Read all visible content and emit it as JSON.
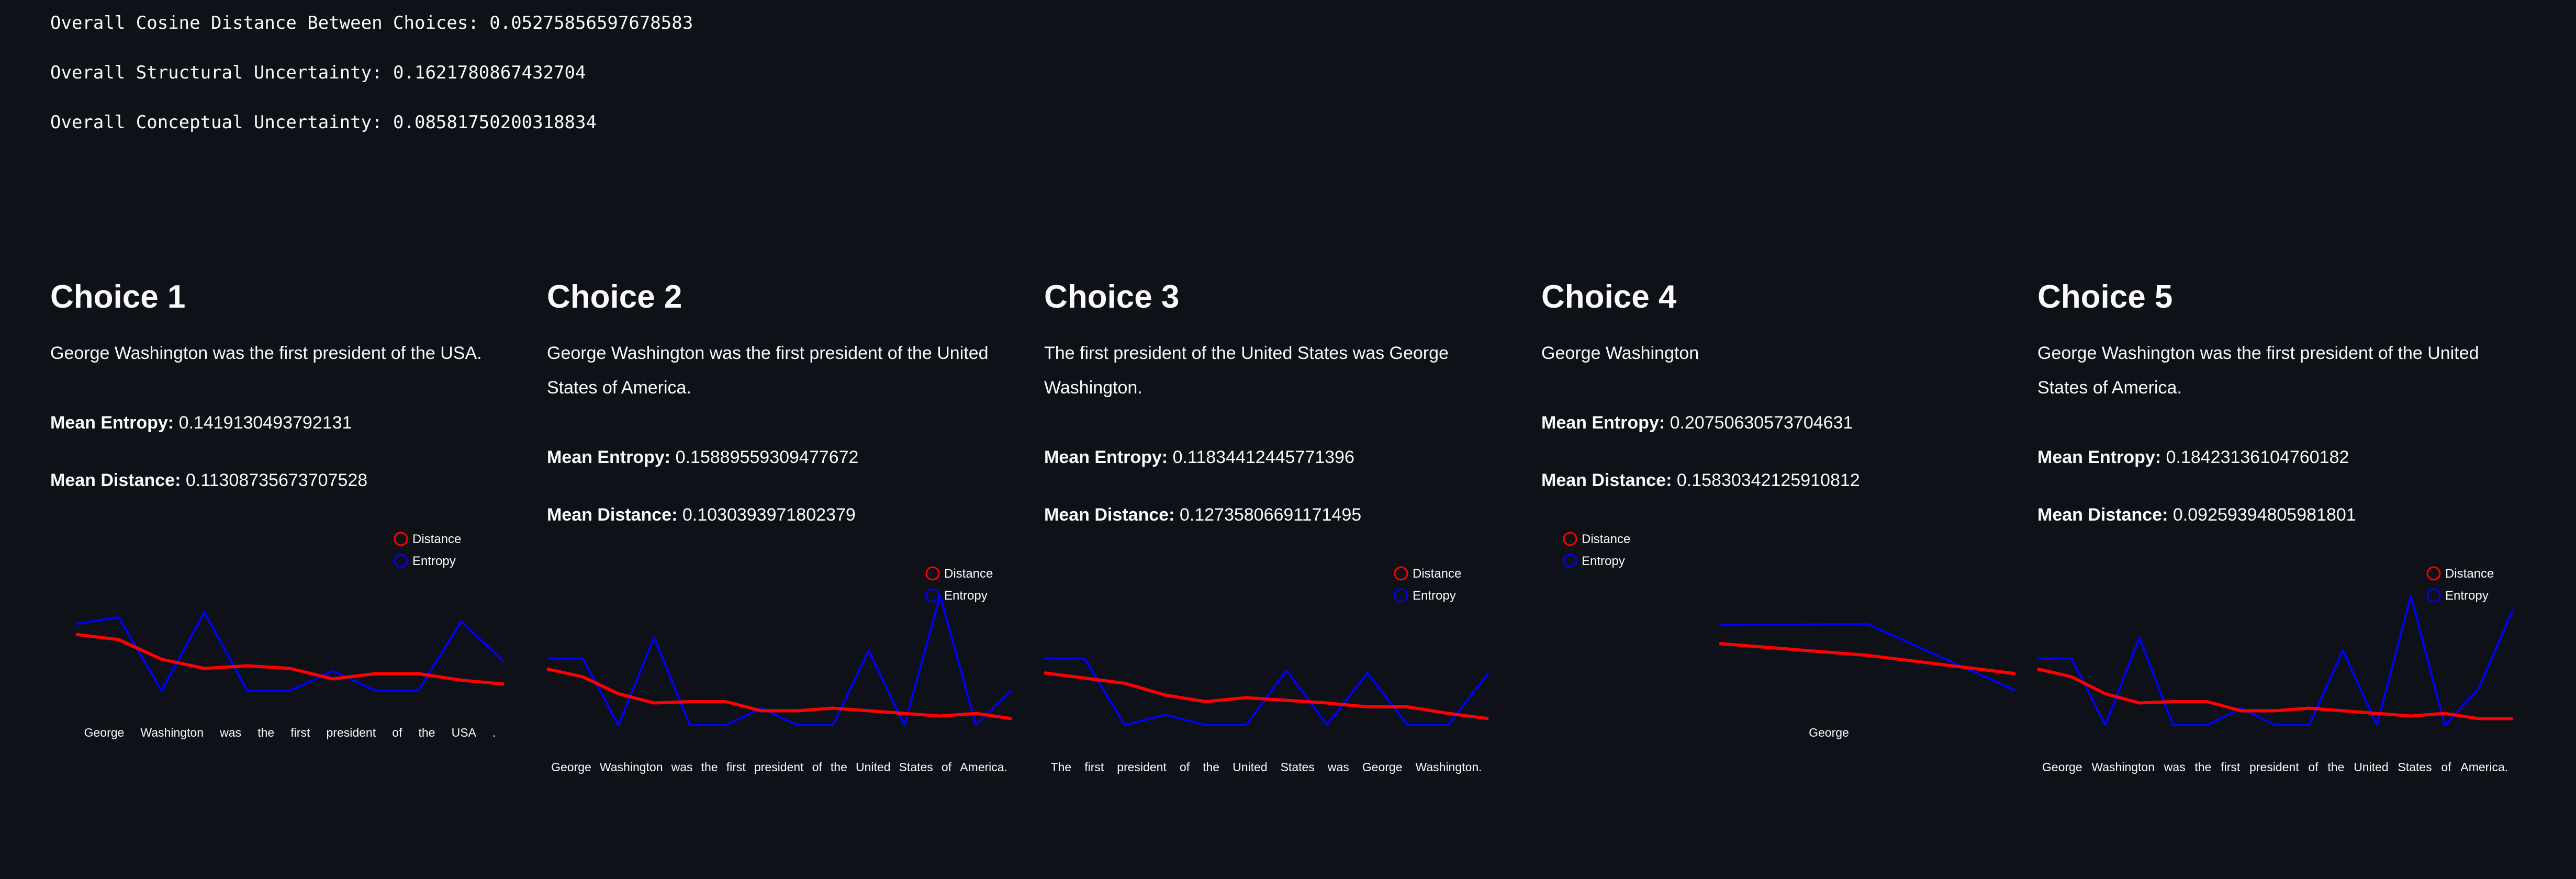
{
  "summary": {
    "cosine_distance": "Overall Cosine Distance Between Choices: 0.05275856597678583",
    "structural_uncertainty": "Overall Structural Uncertainty: 0.1621780867432704",
    "conceptual_uncertainty": "Overall Conceptual Uncertainty: 0.08581750200318834"
  },
  "labels": {
    "mean_entropy": "Mean Entropy:",
    "mean_distance": "Mean Distance:"
  },
  "colors": {
    "distance": "#ff0000",
    "entropy": "#0000ff",
    "background": "#0e1117"
  },
  "choices": [
    {
      "title": "Choice 1",
      "text": "George Washington was the first president of the USA.",
      "mean_entropy": "0.1419130493792131",
      "mean_distance": "0.11308735673707528"
    },
    {
      "title": "Choice 2",
      "text": "George Washington was the first president of the United States of America.",
      "mean_entropy": "0.15889559309477672",
      "mean_distance": "0.1030393971802379"
    },
    {
      "title": "Choice 3",
      "text": "The first president of the United States was George Washington.",
      "mean_entropy": "0.11834412445771396",
      "mean_distance": "0.12735806691171495"
    },
    {
      "title": "Choice 4",
      "text": "George Washington",
      "mean_entropy": "0.20750630573704631",
      "mean_distance": "0.15830342125910812"
    },
    {
      "title": "Choice 5",
      "text": "George Washington was the first president of the United States of America.",
      "mean_entropy": "0.18423136104760182",
      "mean_distance": "0.09259394805981801"
    }
  ],
  "chart_data": [
    {
      "type": "line",
      "legend": [
        "Distance",
        "Entropy"
      ],
      "ylim": [
        0,
        1
      ],
      "tokens": [
        "George",
        "Washington",
        "was",
        "the",
        "first",
        "president",
        "of",
        "the",
        "USA",
        "."
      ],
      "series": [
        {
          "name": "Distance",
          "values": [
            0.43,
            0.39,
            0.24,
            0.17,
            0.19,
            0.17,
            0.09,
            0.13,
            0.13,
            0.08,
            0.05
          ]
        },
        {
          "name": "Entropy",
          "values": [
            0.51,
            0.56,
            0,
            0.6,
            0,
            0,
            0.15,
            0,
            0,
            0.53,
            0.22
          ]
        }
      ]
    },
    {
      "type": "line",
      "legend": [
        "Distance",
        "Entropy"
      ],
      "ylim": [
        0,
        1
      ],
      "tokens": [
        "George",
        "Washington",
        "was",
        "the",
        "first",
        "president",
        "of",
        "the",
        "United",
        "States",
        "of",
        "America."
      ],
      "series": [
        {
          "name": "Distance",
          "values": [
            0.43,
            0.37,
            0.24,
            0.17,
            0.18,
            0.18,
            0.11,
            0.11,
            0.13,
            0.11,
            0.09,
            0.07,
            0.09,
            0.05
          ]
        },
        {
          "name": "Entropy",
          "values": [
            0.51,
            0.51,
            0,
            0.67,
            0,
            0,
            0.13,
            0,
            0,
            0.57,
            0,
            0.99,
            0,
            0.27
          ]
        }
      ]
    },
    {
      "type": "line",
      "legend": [
        "Distance",
        "Entropy"
      ],
      "ylim": [
        0,
        1
      ],
      "tokens": [
        "The",
        "first",
        "president",
        "of",
        "the",
        "United",
        "States",
        "was",
        "George",
        "Washington."
      ],
      "series": [
        {
          "name": "Distance",
          "values": [
            0.4,
            0.36,
            0.32,
            0.23,
            0.18,
            0.21,
            0.19,
            0.17,
            0.14,
            0.14,
            0.09,
            0.05
          ]
        },
        {
          "name": "Entropy",
          "values": [
            0.51,
            0.51,
            0,
            0.08,
            0,
            0,
            0.42,
            0,
            0.4,
            0,
            0,
            0.4
          ]
        }
      ]
    },
    {
      "type": "line",
      "legend": [
        "Distance",
        "Entropy"
      ],
      "ylim": [
        0,
        1
      ],
      "tokens": [
        "George"
      ],
      "series": [
        {
          "name": "Distance",
          "values": [
            0.36,
            0.27,
            0.13
          ]
        },
        {
          "name": "Entropy",
          "values": [
            0.5,
            0.51,
            0
          ]
        }
      ]
    },
    {
      "type": "line",
      "legend": [
        "Distance",
        "Entropy"
      ],
      "ylim": [
        0,
        1
      ],
      "tokens": [
        "George",
        "Washington",
        "was",
        "the",
        "first",
        "president",
        "of",
        "the",
        "United",
        "States",
        "of",
        "America."
      ],
      "series": [
        {
          "name": "Distance",
          "values": [
            0.43,
            0.37,
            0.24,
            0.17,
            0.18,
            0.18,
            0.11,
            0.11,
            0.13,
            0.11,
            0.09,
            0.07,
            0.09,
            0.05,
            0.05
          ]
        },
        {
          "name": "Entropy",
          "values": [
            0.51,
            0.51,
            0,
            0.67,
            0,
            0,
            0.13,
            0,
            0,
            0.57,
            0,
            0.99,
            0,
            0.28,
            0.88
          ]
        }
      ]
    }
  ]
}
